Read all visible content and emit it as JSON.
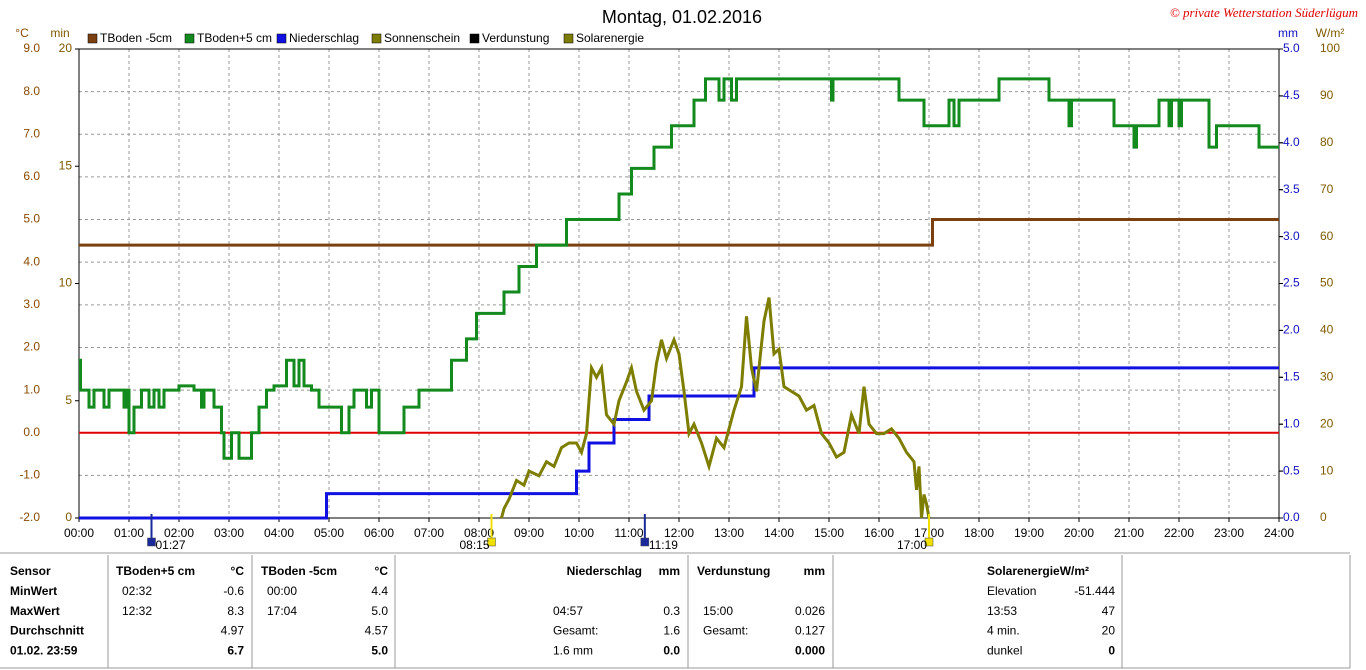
{
  "chart_data": {
    "type": "line",
    "title": "Montag, 01.02.2016",
    "copyright": "© private Wetterstation Süderlügum",
    "xlim": [
      0,
      24
    ],
    "xticks": [
      {
        "value": 0,
        "label": "00:00"
      },
      {
        "value": 1,
        "label": "01:00"
      },
      {
        "value": 2,
        "label": "02:00"
      },
      {
        "value": 3,
        "label": "03:00"
      },
      {
        "value": 4,
        "label": "04:00"
      },
      {
        "value": 5,
        "label": "05:00"
      },
      {
        "value": 6,
        "label": "06:00"
      },
      {
        "value": 7,
        "label": "07:00"
      },
      {
        "value": 8,
        "label": "08:00"
      },
      {
        "value": 9,
        "label": "09:00"
      },
      {
        "value": 10,
        "label": "10:00"
      },
      {
        "value": 11,
        "label": "11:00"
      },
      {
        "value": 12,
        "label": "12:00"
      },
      {
        "value": 13,
        "label": "13:00"
      },
      {
        "value": 14,
        "label": "14:00"
      },
      {
        "value": 15,
        "label": "15:00"
      },
      {
        "value": 16,
        "label": "16:00"
      },
      {
        "value": 17,
        "label": "17:00"
      },
      {
        "value": 18,
        "label": "18:00"
      },
      {
        "value": 19,
        "label": "19:00"
      },
      {
        "value": 20,
        "label": "20:00"
      },
      {
        "value": 21,
        "label": "21:00"
      },
      {
        "value": 22,
        "label": "22:00"
      },
      {
        "value": 23,
        "label": "23:00"
      },
      {
        "value": 24,
        "label": "24:00"
      }
    ],
    "ylabel": "°C",
    "ylim": [
      -2,
      9
    ],
    "yticks": [
      {
        "value": -2,
        "label": "-2.0"
      },
      {
        "value": -1,
        "label": "-1.0"
      },
      {
        "value": 0,
        "label": "0.0"
      },
      {
        "value": 1,
        "label": "1.0"
      },
      {
        "value": 2,
        "label": "2.0"
      },
      {
        "value": 3,
        "label": "3.0"
      },
      {
        "value": 4,
        "label": "4.0"
      },
      {
        "value": 5,
        "label": "5.0"
      },
      {
        "value": 6,
        "label": "6.0"
      },
      {
        "value": 7,
        "label": "7.0"
      },
      {
        "value": 8,
        "label": "8.0"
      },
      {
        "value": 9,
        "label": "9.0"
      }
    ],
    "y3label": "min",
    "y3lim": [
      0,
      20
    ],
    "y3ticks": [
      0,
      5,
      10,
      15,
      20
    ],
    "y2label": "mm",
    "y2lim": [
      0,
      5
    ],
    "y2ticks": [
      {
        "value": 0,
        "label": "0.0"
      },
      {
        "value": 0.5,
        "label": "0.5"
      },
      {
        "value": 1,
        "label": "1.0"
      },
      {
        "value": 1.5,
        "label": "1.5"
      },
      {
        "value": 2,
        "label": "2.0"
      },
      {
        "value": 2.5,
        "label": "2.5"
      },
      {
        "value": 3,
        "label": "3.0"
      },
      {
        "value": 3.5,
        "label": "3.5"
      },
      {
        "value": 4,
        "label": "4.0"
      },
      {
        "value": 4.5,
        "label": "4.5"
      },
      {
        "value": 5,
        "label": "5.0"
      }
    ],
    "y4label": "W/m²",
    "y4lim": [
      0,
      100
    ],
    "y4ticks": [
      0,
      10,
      20,
      30,
      40,
      50,
      60,
      70,
      80,
      90,
      100
    ],
    "grid": true,
    "reference_line": {
      "value": 0,
      "color": "#e00000"
    },
    "series": [
      {
        "name": "TBoden -5cm",
        "color": "#7a4010",
        "axis": "y",
        "step": true,
        "x": [
          0,
          17.07,
          24
        ],
        "values": [
          4.4,
          5.0,
          5.0
        ]
      },
      {
        "name": "TBoden+5 cm",
        "color": "#138a1d",
        "axis": "y",
        "step": true,
        "x": [
          0,
          0.03,
          0.2,
          0.3,
          0.5,
          0.6,
          0.9,
          0.95,
          1.0,
          1.1,
          1.25,
          1.4,
          1.5,
          1.6,
          1.7,
          2.0,
          2.3,
          2.45,
          2.5,
          2.7,
          2.85,
          2.9,
          3.05,
          3.2,
          3.45,
          3.6,
          3.75,
          3.9,
          4.15,
          4.3,
          4.4,
          4.5,
          4.65,
          4.8,
          5.2,
          5.25,
          5.4,
          5.5,
          5.75,
          5.85,
          6.0,
          6.5,
          6.8,
          7.45,
          7.75,
          7.95,
          8.5,
          8.8,
          9.15,
          9.75,
          10.8,
          11.05,
          11.5,
          11.85,
          12.3,
          12.53,
          12.8,
          12.9,
          13.05,
          13.15,
          15.05,
          15.08,
          16.4,
          16.9,
          17.4,
          17.5,
          17.6,
          18.4,
          19.4,
          19.8,
          19.85,
          20.7,
          21.1,
          21.15,
          21.6,
          21.8,
          21.85,
          22.0,
          22.05,
          22.6,
          22.75,
          23.6,
          24
        ],
        "values": [
          1.7,
          1.0,
          0.6,
          1.0,
          0.6,
          1.0,
          0.6,
          1.0,
          0.0,
          0.6,
          1.0,
          0.6,
          1.0,
          0.6,
          1.0,
          1.1,
          1.0,
          0.6,
          1.0,
          0.6,
          0.0,
          -0.6,
          0.0,
          -0.6,
          0.0,
          0.6,
          1.0,
          1.1,
          1.7,
          1.1,
          1.7,
          1.1,
          1.0,
          0.6,
          0.6,
          0.0,
          0.6,
          1.0,
          0.6,
          1.0,
          0.0,
          0.6,
          1.0,
          1.7,
          2.2,
          2.8,
          3.3,
          3.9,
          4.4,
          5.0,
          5.6,
          6.2,
          6.7,
          7.2,
          7.8,
          8.3,
          7.8,
          8.3,
          7.8,
          8.3,
          7.8,
          8.3,
          7.8,
          7.2,
          7.8,
          7.2,
          7.8,
          8.3,
          7.8,
          7.2,
          7.8,
          7.2,
          6.7,
          7.2,
          7.8,
          7.2,
          7.8,
          7.2,
          7.8,
          6.7,
          7.2,
          6.7,
          6.7
        ]
      },
      {
        "name": "Niederschlag",
        "color": "#1010e0",
        "axis": "y2",
        "step": true,
        "x": [
          0,
          4.95,
          9.95,
          10.2,
          10.7,
          11.4,
          13.5,
          24
        ],
        "values": [
          0,
          0.26,
          0.5,
          0.8,
          1.05,
          1.3,
          1.6,
          1.6
        ]
      },
      {
        "name": "Sonnenschein",
        "color": "#7d7d00",
        "axis": "y3"
      },
      {
        "name": "Verdunstung",
        "color": "#000000",
        "axis": "y2"
      },
      {
        "name": "Solarenergie",
        "color": "#7d7d00",
        "axis": "y4",
        "step": false,
        "x": [
          8.45,
          8.5,
          8.6,
          8.75,
          8.9,
          9.0,
          9.2,
          9.35,
          9.5,
          9.65,
          9.8,
          9.95,
          10.05,
          10.15,
          10.25,
          10.35,
          10.45,
          10.55,
          10.7,
          10.8,
          10.95,
          11.05,
          11.15,
          11.3,
          11.45,
          11.55,
          11.65,
          11.75,
          11.9,
          12.0,
          12.1,
          12.2,
          12.3,
          12.45,
          12.6,
          12.75,
          12.9,
          13.1,
          13.25,
          13.35,
          13.45,
          13.55,
          13.7,
          13.8,
          13.9,
          14.0,
          14.1,
          14.25,
          14.4,
          14.55,
          14.7,
          14.85,
          15.0,
          15.15,
          15.3,
          15.45,
          15.6,
          15.7,
          15.8,
          15.95,
          16.1,
          16.25,
          16.4,
          16.55,
          16.7,
          16.75,
          16.8,
          16.85,
          16.9,
          16.95,
          17.0
        ],
        "values": [
          0,
          2,
          4,
          8,
          7,
          10,
          9,
          12,
          11,
          15,
          16,
          16,
          14,
          18,
          32,
          30,
          32,
          22,
          20,
          25,
          29,
          32,
          27,
          23,
          25,
          33,
          38,
          34,
          38,
          35,
          27,
          18,
          20,
          16,
          11,
          17,
          15,
          23,
          28,
          43,
          32,
          27,
          42,
          47,
          35,
          36,
          28,
          27,
          26,
          23,
          24,
          18,
          16,
          13,
          14,
          22,
          18,
          28,
          20,
          18,
          18,
          19,
          17,
          14,
          12,
          6,
          11,
          0,
          5,
          3,
          0
        ]
      }
    ],
    "markers": [
      {
        "x": 1.45,
        "label": "01:27",
        "color": "#1a2a9a"
      },
      {
        "x": 8.25,
        "label": "08:15",
        "color": "#f0e000"
      },
      {
        "x": 11.3167,
        "label": "11:19",
        "color": "#1a2a9a"
      },
      {
        "x": 17.0,
        "label": "17:00",
        "color": "#f0e000"
      }
    ]
  },
  "table": {
    "header": [
      "Sensor",
      "TBoden+5 cm",
      "°C",
      "TBoden -5cm",
      "°C",
      "Niederschlag",
      "mm",
      "Verdunstung",
      "mm",
      "SolarenergieW/m²"
    ],
    "rows": [
      [
        "MinWert",
        "02:32",
        "-0.6",
        "00:00",
        "4.4",
        null,
        null,
        null,
        null,
        "Elevation",
        "-51.444"
      ],
      [
        "MaxWert",
        "12:32",
        "8.3",
        "17:04",
        "5.0",
        "04:57",
        "0.3",
        "15:00",
        "0.026",
        "13:53",
        "47"
      ],
      [
        "Durchschnitt",
        null,
        "4.97",
        null,
        "4.57",
        "Gesamt:",
        "1.6",
        "Gesamt:",
        "0.127",
        "4 min.",
        "20"
      ],
      [
        "01.02. 23:59",
        null,
        "6.7",
        null,
        "5.0",
        "1.6 mm",
        "0.0",
        null,
        "0.000",
        "dunkel",
        "0"
      ]
    ]
  }
}
